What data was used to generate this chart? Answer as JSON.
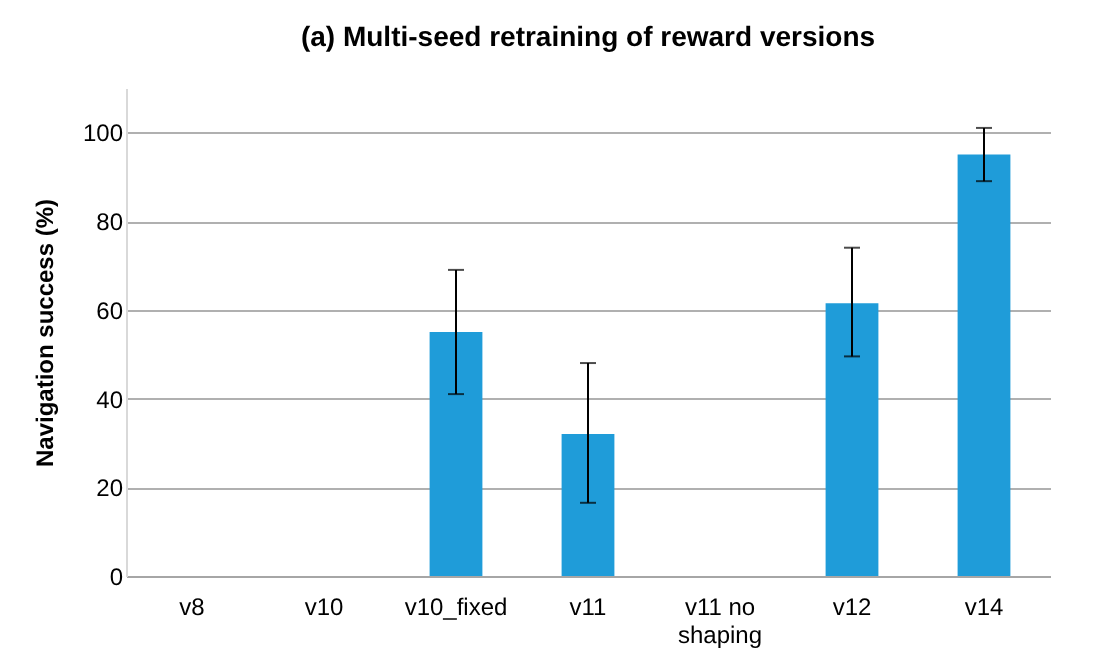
{
  "chart_data": {
    "type": "bar",
    "title": "(a) Multi-seed retraining of reward versions",
    "ylabel": "Navigation success (%)",
    "categories": [
      "v8",
      "v10",
      "v10_fixed",
      "v11",
      "v11 no shaping",
      "v12",
      "v14"
    ],
    "values": [
      0,
      0,
      55,
      32,
      0,
      61.5,
      95
    ],
    "errors": [
      null,
      null,
      [
        41,
        69
      ],
      [
        16.5,
        48
      ],
      null,
      [
        49.5,
        74
      ],
      [
        89,
        101
      ]
    ],
    "color": "#1f9cd9",
    "ylim": [
      0,
      110
    ],
    "yticks": [
      0,
      20,
      40,
      60,
      80,
      100
    ],
    "grid": "y"
  }
}
